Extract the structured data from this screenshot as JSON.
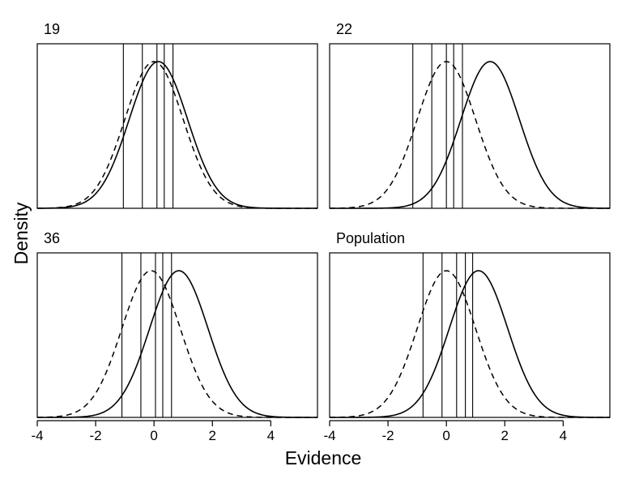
{
  "chart_data": {
    "type": "line",
    "ylabel": "Density",
    "xlabel": "Evidence",
    "xlim": [
      -4,
      5.6
    ],
    "x_ticks": [
      -4,
      -2,
      0,
      2,
      4
    ],
    "x_tick_labels": [
      "-4",
      "-2",
      "0",
      "2",
      "4"
    ],
    "y_ticks_shown": false,
    "grid": false,
    "legend": "none",
    "panels": [
      {
        "title": "19",
        "criteria": [
          -1.05,
          -0.4,
          0.1,
          0.35,
          0.65
        ],
        "series": [
          {
            "style": "dashed",
            "mean": 0.0,
            "sd": 1.0
          },
          {
            "style": "solid",
            "mean": 0.15,
            "sd": 1.0
          }
        ]
      },
      {
        "title": "22",
        "criteria": [
          -1.15,
          -0.5,
          0.0,
          0.25,
          0.55
        ],
        "series": [
          {
            "style": "dashed",
            "mean": 0.0,
            "sd": 1.0
          },
          {
            "style": "solid",
            "mean": 1.5,
            "sd": 1.0
          }
        ]
      },
      {
        "title": "36",
        "criteria": [
          -1.1,
          -0.45,
          0.05,
          0.3,
          0.6
        ],
        "series": [
          {
            "style": "dashed",
            "mean": -0.1,
            "sd": 1.0
          },
          {
            "style": "solid",
            "mean": 0.85,
            "sd": 1.0
          }
        ]
      },
      {
        "title": "Population",
        "criteria": [
          -0.8,
          -0.15,
          0.35,
          0.65,
          0.9
        ],
        "series": [
          {
            "style": "dashed",
            "mean": 0.0,
            "sd": 1.0
          },
          {
            "style": "solid",
            "mean": 1.1,
            "sd": 1.0
          }
        ]
      }
    ]
  }
}
